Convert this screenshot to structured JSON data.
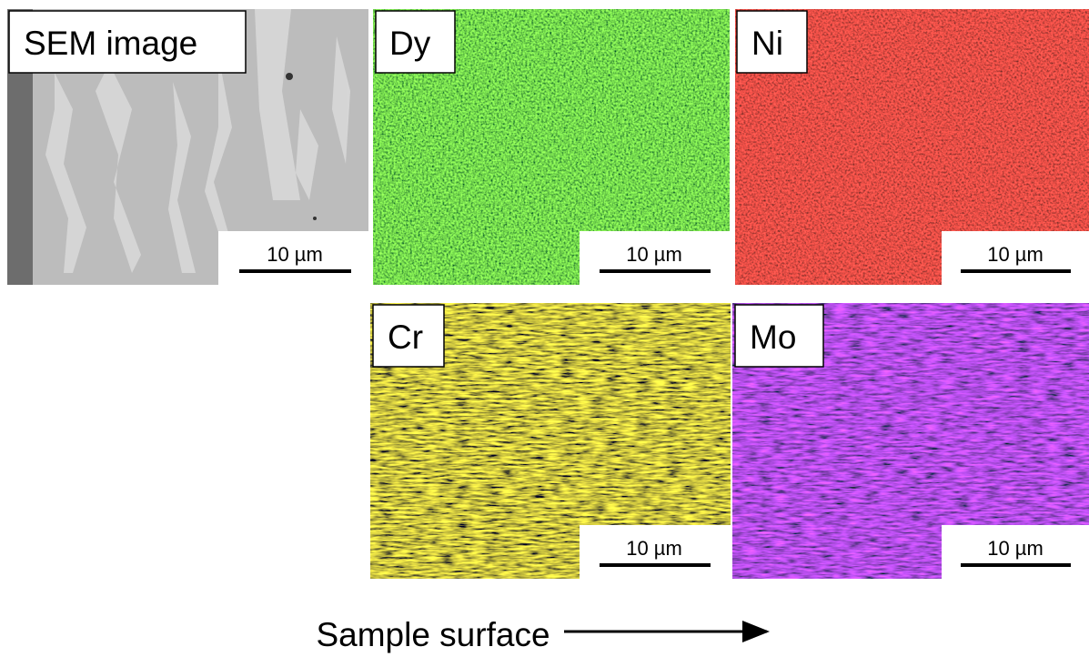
{
  "panels": [
    {
      "label": "SEM image",
      "scale": "10 µm"
    },
    {
      "label": "Dy",
      "scale": "10 µm"
    },
    {
      "label": "Ni",
      "scale": "10 µm"
    },
    {
      "label": "Cr",
      "scale": "10 µm"
    },
    {
      "label": "Mo",
      "scale": "10 µm"
    }
  ],
  "caption": "Sample surface"
}
